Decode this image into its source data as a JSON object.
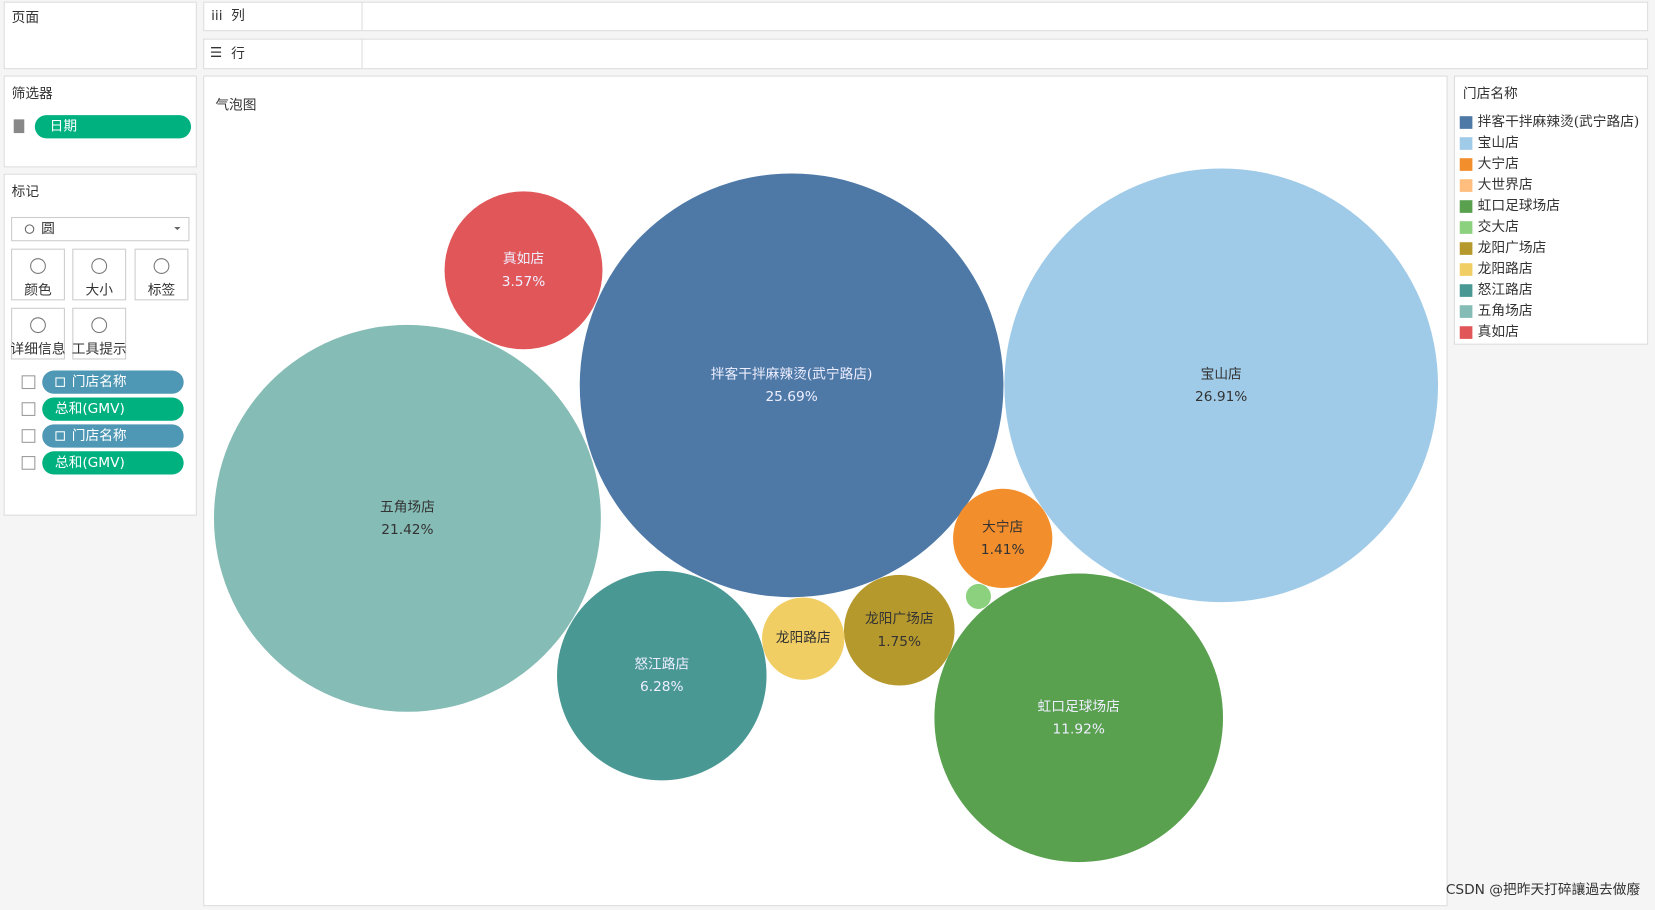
{
  "shelves": {
    "pages": "页面",
    "columns": "列",
    "rows": "行"
  },
  "filters": {
    "title": "筛选器",
    "items": [
      "日期"
    ]
  },
  "marks": {
    "title": "标记",
    "mark_type": "圆",
    "buttons": [
      "颜色",
      "大小",
      "标签",
      "详细信息",
      "工具提示"
    ],
    "fields": [
      "门店名称",
      "总和(GMV)",
      "门店名称",
      "总和(GMV)"
    ]
  },
  "chart_data": {
    "type": "bubble",
    "title": "气泡图",
    "legend_title": "门店名称",
    "categories": [
      "拌客干拌麻辣烫(武宁路店)",
      "宝山店",
      "大宁店",
      "大世界店",
      "虹口足球场店",
      "交大店",
      "龙阳广场店",
      "龙阳路店",
      "怒江路店",
      "五角场店",
      "真如店"
    ],
    "values": [
      25.69,
      26.91,
      1.41,
      null,
      11.92,
      0.09,
      1.75,
      0.97,
      6.28,
      21.42,
      3.57
    ],
    "value_labels": [
      "25.69%",
      "26.91%",
      "1.41%",
      null,
      "11.92%",
      null,
      "1.75%",
      null,
      "6.28%",
      "21.42%",
      "3.57%"
    ],
    "colors": [
      "#4e79a7",
      "#a0cbe8",
      "#f28e2b",
      "#ffbe7d",
      "#59a14f",
      "#8cd17d",
      "#b6992d",
      "#f1ce63",
      "#499894",
      "#86bcb6",
      "#e15759"
    ]
  },
  "watermark": "CSDN @把昨天打碎讓過去做廢"
}
